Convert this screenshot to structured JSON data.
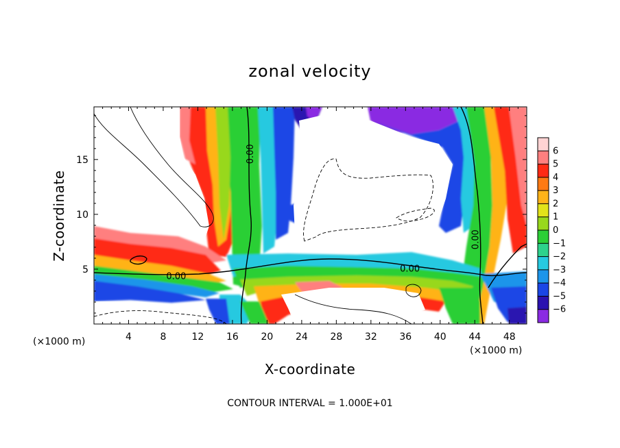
{
  "chart_data": {
    "type": "heatmap",
    "title": "zonal velocity",
    "xlabel": "X-coordinate",
    "ylabel": "Z-coordinate",
    "x_unit_label": "(×1000 m)",
    "xlim": [
      0,
      50
    ],
    "ylim": [
      0,
      19.8
    ],
    "x_ticks": [
      4,
      8,
      12,
      16,
      20,
      24,
      28,
      32,
      36,
      40,
      44,
      48
    ],
    "y_ticks": [
      5,
      10,
      15
    ],
    "colorbar": {
      "levels": [
        6,
        5,
        4,
        3,
        2,
        1,
        0,
        -1,
        -2,
        -3,
        -4,
        -5,
        -6
      ],
      "colors": [
        "#8a2be2",
        "#2b12b0",
        "#1a46e6",
        "#1c95ea",
        "#26c9e0",
        "#2ed28c",
        "#2ccf36",
        "#98d81c",
        "#e2e21a",
        "#ffb319",
        "#ff7a14",
        "#ff2a14",
        "#ff7f7f",
        "#ffd3d3"
      ],
      "extend": "both"
    },
    "contour_labels": [
      {
        "text": "0.00",
        "x": 9.5,
        "y": 4.4,
        "rotation": 0
      },
      {
        "text": "0.00",
        "x": 36.5,
        "y": 5.1,
        "rotation": 0
      },
      {
        "text": "0.00",
        "x": 18.0,
        "y": 15.5,
        "rotation": -90
      },
      {
        "text": "0.00",
        "x": 44.0,
        "y": 7.7,
        "rotation": -90
      }
    ],
    "annotation": "CONTOUR INTERVAL = 1.000E+01",
    "grid": false
  }
}
